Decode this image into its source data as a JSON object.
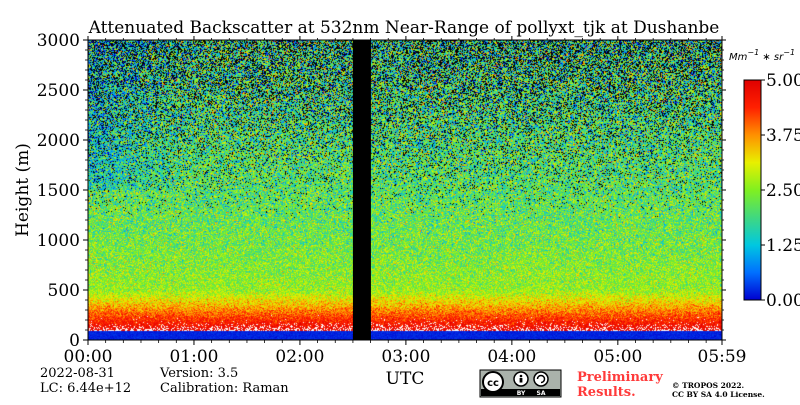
{
  "chart_data": {
    "type": "heatmap",
    "title": "Attenuated Backscatter at 532nm Near-Range of pollyxt_tjk at Dushanbe",
    "ylabel": "Height (m)",
    "xlabel": "UTC",
    "ylim": [
      0,
      3000
    ],
    "xlim_hours": [
      0,
      5.983
    ],
    "yticks": [
      "0",
      "500",
      "1000",
      "1500",
      "2000",
      "2500",
      "3000"
    ],
    "xticks": [
      "00:00",
      "01:00",
      "02:00",
      "03:00",
      "04:00",
      "05:00",
      "05:59"
    ],
    "colorbar": {
      "unit": "Mm^-1 * sr^-1",
      "min": 0.0,
      "max": 5.0,
      "ticks": [
        "0.00",
        "1.25",
        "2.50",
        "3.75",
        "5.00"
      ],
      "colormap": [
        "#0000d0",
        "#0070ff",
        "#00c8e0",
        "#40d880",
        "#80f020",
        "#e8f000",
        "#ff9000",
        "#ff2000",
        "#e00000"
      ]
    },
    "data_gap_hours": [
      2.5,
      2.67
    ],
    "profile": {
      "description_levels_m": [
        0,
        100,
        300,
        500,
        1000,
        1500,
        2000,
        2500,
        3000
      ],
      "mean_backscatter": [
        0.3,
        5.0,
        3.8,
        2.6,
        2.3,
        2.1,
        2.0,
        1.9,
        1.8
      ]
    }
  },
  "footer": {
    "date": "2022-08-31",
    "lc": "LC: 6.44e+12",
    "version": "Version: 3.5",
    "calibration": "Calibration: Raman",
    "preliminary_line1": "Preliminary",
    "preliminary_line2": "Results.",
    "copyright_line1": "© TROPOS 2022.",
    "copyright_line2": "CC BY SA 4.0 License.",
    "cc_badge_text": "cc",
    "cc_by": "BY",
    "cc_sa": "SA"
  }
}
